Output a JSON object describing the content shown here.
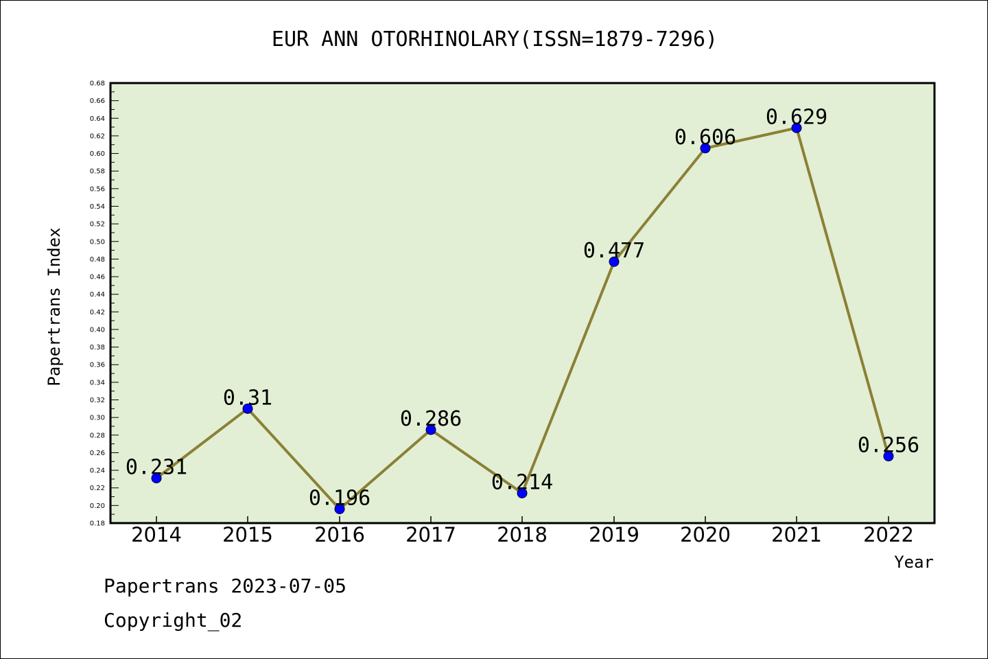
{
  "chart_data": {
    "type": "line",
    "title": "EUR ANN OTORHINOLARY(ISSN=1879-7296)",
    "xlabel": "Year",
    "ylabel": "Papertrans Index",
    "categories": [
      "2014",
      "2015",
      "2016",
      "2017",
      "2018",
      "2019",
      "2020",
      "2021",
      "2022"
    ],
    "series": [
      {
        "values": [
          0.231,
          0.31,
          0.196,
          0.286,
          0.214,
          0.477,
          0.606,
          0.629,
          0.256
        ],
        "labels": [
          "0.231",
          "0.31",
          "0.196",
          "0.286",
          "0.214",
          "0.477",
          "0.606",
          "0.629",
          "0.256"
        ]
      }
    ],
    "ylim": [
      0.18,
      0.68
    ],
    "ytick_step": 0.02,
    "grid": false,
    "colors": {
      "plot_background": "#e2efd5",
      "line": "#8b8035",
      "marker": "#0000ff",
      "axis": "#000000"
    }
  },
  "footer": {
    "line1": "Papertrans 2023-07-05",
    "line2": "Copyright_02"
  }
}
